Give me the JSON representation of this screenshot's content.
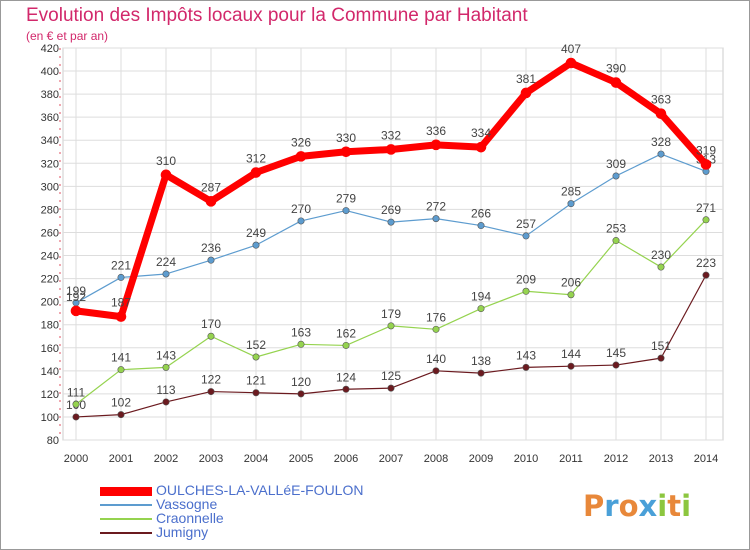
{
  "header": {
    "title": "Evolution des Impôts locaux pour la Commune par Habitant",
    "subtitle": "(en € et par an)"
  },
  "brand": {
    "text": "Proxiti",
    "letters": [
      {
        "ch": "P",
        "color": "#e8883a"
      },
      {
        "ch": "r",
        "color": "#4aa0d8"
      },
      {
        "ch": "o",
        "color": "#e8883a"
      },
      {
        "ch": "x",
        "color": "#4aa0d8"
      },
      {
        "ch": "i",
        "color": "#8cc63f"
      },
      {
        "ch": "t",
        "color": "#e8883a"
      },
      {
        "ch": "i",
        "color": "#8cc63f"
      }
    ]
  },
  "chart_data": {
    "type": "line",
    "title": "Evolution des Impôts locaux pour la Commune par Habitant",
    "subtitle": "(en € et par an)",
    "x": [
      2000,
      2001,
      2002,
      2003,
      2004,
      2005,
      2006,
      2007,
      2008,
      2009,
      2010,
      2011,
      2012,
      2013,
      2014
    ],
    "ylim": [
      80,
      420
    ],
    "yticks": [
      80,
      100,
      120,
      140,
      160,
      180,
      200,
      220,
      240,
      260,
      280,
      300,
      320,
      340,
      360,
      380,
      400,
      420
    ],
    "grid": true,
    "legend_position": "bottom-left",
    "series": [
      {
        "name": "OULCHES-LA-VALLéE-FOULON",
        "color": "#ff0000",
        "values": [
          192,
          187,
          310,
          287,
          312,
          326,
          330,
          332,
          336,
          334,
          381,
          407,
          390,
          363,
          319
        ]
      },
      {
        "name": "Vassogne",
        "color": "#5d9ccf",
        "values": [
          199,
          221,
          224,
          236,
          249,
          270,
          279,
          269,
          272,
          266,
          257,
          285,
          309,
          328,
          313
        ]
      },
      {
        "name": "Craonnelle",
        "color": "#95d34f",
        "values": [
          111,
          141,
          143,
          170,
          152,
          163,
          162,
          179,
          176,
          194,
          209,
          206,
          253,
          230,
          271
        ]
      },
      {
        "name": "Jumigny",
        "color": "#6b1a1f",
        "values": [
          100,
          102,
          113,
          122,
          121,
          120,
          124,
          125,
          140,
          138,
          143,
          144,
          145,
          151,
          223
        ]
      }
    ]
  }
}
